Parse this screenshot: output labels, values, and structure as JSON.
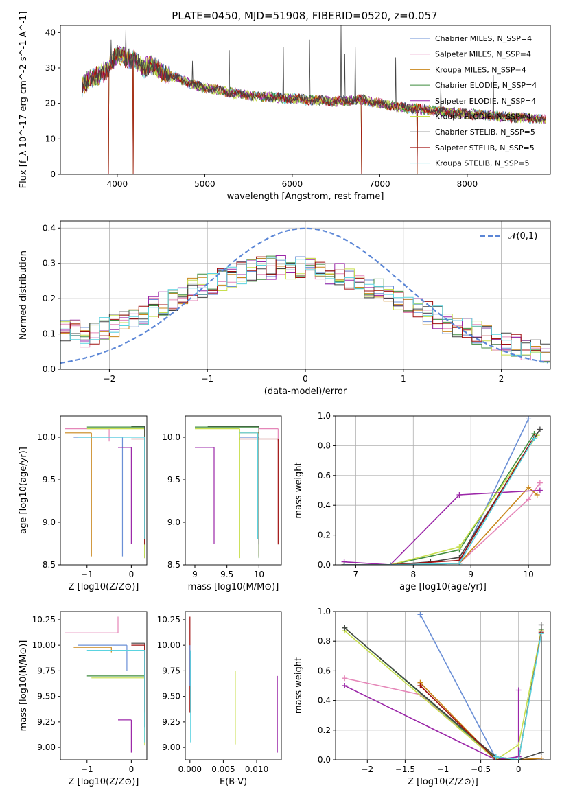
{
  "title": "PLATE=0450, MJD=51908, FIBERID=0520, z=0.057",
  "colors": [
    "#6a8fd6",
    "#e586b8",
    "#c9861a",
    "#3f8c3f",
    "#9b27a8",
    "#c8df4f",
    "#444444",
    "#a01010",
    "#5ad3e0"
  ],
  "series_names": [
    "Chabrier MILES, N_SSP=4",
    "Salpeter MILES, N_SSP=4",
    "Kroupa MILES, N_SSP=4",
    "Chabrier ELODIE, N_SSP=4",
    "Salpeter ELODIE, N_SSP=4",
    "Kroupa ELODIE, N_SSP=4",
    "Chabrier STELIB, N_SSP=5",
    "Salpeter STELIB, N_SSP=5",
    "Kroupa STELIB, N_SSP=5"
  ],
  "chart_data": [
    {
      "id": "spectrum",
      "type": "line",
      "xlabel": "wavelength [Angstrom, rest frame]",
      "ylabel": "Flux [f_λ 10^-17 erg cm^-2 s^-1 A^-1]",
      "xlim": [
        3350,
        8950
      ],
      "ylim": [
        0,
        42
      ],
      "xticks": [
        4000,
        5000,
        6000,
        7000,
        8000
      ],
      "yticks": [
        0,
        10,
        20,
        30,
        40
      ],
      "grid": false,
      "legend": "top-right",
      "continuum": [
        [
          3600,
          25
        ],
        [
          3700,
          27
        ],
        [
          3800,
          28
        ],
        [
          3900,
          30
        ],
        [
          4000,
          34
        ],
        [
          4100,
          33
        ],
        [
          4200,
          32
        ],
        [
          4300,
          30
        ],
        [
          4400,
          31
        ],
        [
          4500,
          29
        ],
        [
          4700,
          27
        ],
        [
          4900,
          25
        ],
        [
          5100,
          24
        ],
        [
          5300,
          23
        ],
        [
          5600,
          22
        ],
        [
          5900,
          21.5
        ],
        [
          6200,
          21
        ],
        [
          6500,
          20.5
        ],
        [
          6800,
          21
        ],
        [
          7000,
          20
        ],
        [
          7200,
          19
        ],
        [
          7400,
          18.5
        ],
        [
          7600,
          18
        ],
        [
          7800,
          17.5
        ],
        [
          8000,
          17
        ],
        [
          8300,
          16.5
        ],
        [
          8600,
          16
        ],
        [
          8900,
          15.5
        ]
      ],
      "spikes": [
        [
          3930,
          38
        ],
        [
          4100,
          41
        ],
        [
          4860,
          32
        ],
        [
          5280,
          35
        ],
        [
          5900,
          36
        ],
        [
          6200,
          38
        ],
        [
          6560,
          42
        ],
        [
          6600,
          34
        ],
        [
          6720,
          36
        ],
        [
          7180,
          33
        ],
        [
          7700,
          25
        ],
        [
          8300,
          28
        ]
      ],
      "dips": [
        [
          3900,
          0
        ],
        [
          4180,
          0
        ],
        [
          6790,
          0
        ],
        [
          7430,
          0
        ]
      ]
    },
    {
      "id": "residual_hist",
      "type": "line",
      "xlabel": "(data-model)/error",
      "ylabel": "Normed distribution",
      "xlim": [
        -2.5,
        2.5
      ],
      "ylim": [
        0,
        0.42
      ],
      "xticks": [
        -2,
        -1,
        0,
        1,
        2
      ],
      "yticks": [
        0.0,
        0.1,
        0.2,
        0.3,
        0.4
      ],
      "grid": true,
      "legend": "top-right",
      "reference_label": "𝒩(0,1)",
      "bin_width": 0.1
    },
    {
      "id": "age_vs_Z",
      "type": "scatter",
      "xlabel": "Z [log10(Z/Z⊙)]",
      "ylabel": "age [log10(age/yr)]",
      "xlim": [
        -1.6,
        0.35
      ],
      "ylim": [
        8.5,
        10.25
      ],
      "xticks": [
        -1,
        0
      ],
      "yticks": [
        8.5,
        9.0,
        9.5,
        10.0
      ],
      "grid": false,
      "segments": [
        {
          "c": 0,
          "x0": -1.3,
          "x1": -0.2,
          "y": 10.0,
          "y0": 8.6
        },
        {
          "c": 1,
          "x0": -1.5,
          "x1": -0.5,
          "y": 10.1,
          "y0": 9.95
        },
        {
          "c": 2,
          "x0": -1.5,
          "x1": -0.9,
          "y": 10.05,
          "y0": 8.6
        },
        {
          "c": 3,
          "x0": -1.0,
          "x1": 0.3,
          "y": 10.12,
          "y0": 8.58
        },
        {
          "c": 4,
          "x0": -0.3,
          "x1": 0.0,
          "y": 9.88,
          "y0": 8.75
        },
        {
          "c": 5,
          "x0": -1.0,
          "x1": 0.3,
          "y": 10.1,
          "y0": 8.58
        },
        {
          "c": 6,
          "x0": 0.0,
          "x1": 0.3,
          "y": 10.13,
          "y0": 8.74
        },
        {
          "c": 7,
          "x0": 0.0,
          "x1": 0.3,
          "y": 9.98,
          "y0": 8.74
        },
        {
          "c": 8,
          "x0": -1.2,
          "x1": 0.3,
          "y": 10.0,
          "y0": 8.8
        }
      ]
    },
    {
      "id": "age_vs_mass",
      "type": "scatter",
      "xlabel": "mass [log10(M/M⊙)]",
      "ylabel": "",
      "xlim": [
        8.85,
        10.35
      ],
      "ylim": [
        8.5,
        10.25
      ],
      "xticks": [
        9.0,
        9.5,
        10.0
      ],
      "yticks": [
        8.5,
        9.0,
        9.5,
        10.0
      ],
      "grid": false,
      "segments": [
        {
          "c": 0,
          "x0": 9.7,
          "x1": 10.0,
          "y": 10.0,
          "y0": 8.6
        },
        {
          "c": 1,
          "x0": 10.0,
          "x1": 10.3,
          "y": 10.1,
          "y0": 9.95
        },
        {
          "c": 2,
          "x0": 9.7,
          "x1": 10.0,
          "y": 10.05,
          "y0": 8.6
        },
        {
          "c": 3,
          "x0": 9.0,
          "x1": 10.0,
          "y": 10.12,
          "y0": 8.58
        },
        {
          "c": 4,
          "x0": 9.0,
          "x1": 9.3,
          "y": 9.88,
          "y0": 8.75
        },
        {
          "c": 5,
          "x0": 9.0,
          "x1": 9.7,
          "y": 10.1,
          "y0": 8.58
        },
        {
          "c": 6,
          "x0": 9.2,
          "x1": 10.0,
          "y": 10.13,
          "y0": 8.74
        },
        {
          "c": 7,
          "x0": 9.7,
          "x1": 10.3,
          "y": 9.98,
          "y0": 8.74
        },
        {
          "c": 8,
          "x0": 9.7,
          "x1": 9.98,
          "y": 10.05,
          "y0": 8.8
        }
      ]
    },
    {
      "id": "weight_vs_age",
      "type": "line",
      "xlabel": "age [log10(age/yr)]",
      "ylabel": "mass weight",
      "xlim": [
        6.65,
        10.38
      ],
      "ylim": [
        0,
        1.0
      ],
      "xticks": [
        7,
        8,
        9,
        10
      ],
      "yticks": [
        0.0,
        0.2,
        0.4,
        0.6,
        0.8,
        1.0
      ],
      "grid": true,
      "series": [
        {
          "c": 0,
          "x": [
            6.8,
            7.6,
            8.8,
            10.0
          ],
          "y": [
            0.0,
            0.0,
            0.01,
            0.98
          ]
        },
        {
          "c": 1,
          "x": [
            6.8,
            7.6,
            8.8,
            10.0,
            10.2
          ],
          "y": [
            0.0,
            0.0,
            0.01,
            0.44,
            0.55
          ]
        },
        {
          "c": 2,
          "x": [
            6.8,
            7.6,
            8.8,
            10.0,
            10.15
          ],
          "y": [
            0.0,
            0.0,
            0.01,
            0.52,
            0.47
          ]
        },
        {
          "c": 3,
          "x": [
            6.8,
            7.6,
            8.8,
            10.1
          ],
          "y": [
            0.0,
            0.0,
            0.1,
            0.88
          ]
        },
        {
          "c": 4,
          "x": [
            6.8,
            7.6,
            8.8,
            10.2
          ],
          "y": [
            0.02,
            0.0,
            0.47,
            0.5
          ]
        },
        {
          "c": 5,
          "x": [
            6.8,
            7.6,
            8.8,
            10.15
          ],
          "y": [
            0.0,
            0.0,
            0.12,
            0.87
          ]
        },
        {
          "c": 6,
          "x": [
            6.8,
            7.6,
            8.3,
            8.8,
            10.2
          ],
          "y": [
            0.0,
            0.0,
            0.02,
            0.05,
            0.91
          ]
        },
        {
          "c": 7,
          "x": [
            6.8,
            7.6,
            8.8,
            10.1
          ],
          "y": [
            0.0,
            0.0,
            0.03,
            0.86
          ]
        },
        {
          "c": 8,
          "x": [
            6.8,
            7.6,
            8.8,
            10.1
          ],
          "y": [
            0.0,
            0.0,
            0.01,
            0.85
          ]
        }
      ]
    },
    {
      "id": "mass_vs_Z",
      "type": "scatter",
      "xlabel": "Z [log10(Z/Z⊙)]",
      "ylabel": "mass [log10(M/M⊙)]",
      "xlim": [
        -1.6,
        0.35
      ],
      "ylim": [
        8.88,
        10.33
      ],
      "xticks": [
        -1,
        0
      ],
      "yticks": [
        9.0,
        9.25,
        9.5,
        9.75,
        10.0,
        10.25
      ],
      "grid": false,
      "segments": [
        {
          "c": 0,
          "x0": -1.2,
          "x1": -0.1,
          "y": 10.0,
          "y0": 9.75
        },
        {
          "c": 1,
          "x0": -1.5,
          "x1": -0.3,
          "y": 10.12,
          "y0": 10.28
        },
        {
          "c": 2,
          "x0": -1.3,
          "x1": -0.45,
          "y": 9.98,
          "y0": 9.93
        },
        {
          "c": 3,
          "x0": -1.0,
          "x1": 0.3,
          "y": 9.7,
          "y0": 9.72
        },
        {
          "c": 4,
          "x0": -0.3,
          "x1": 0.0,
          "y": 9.27,
          "y0": 8.95
        },
        {
          "c": 5,
          "x0": -0.9,
          "x1": 0.3,
          "y": 9.68,
          "y0": 9.02
        },
        {
          "c": 6,
          "x0": 0.0,
          "x1": 0.3,
          "y": 10.02,
          "y0": 9.2
        },
        {
          "c": 7,
          "x0": 0.0,
          "x1": 0.3,
          "y": 10.0,
          "y0": 9.34
        },
        {
          "c": 8,
          "x0": -1.0,
          "x1": 0.3,
          "y": 9.95,
          "y0": 9.05
        }
      ]
    },
    {
      "id": "mass_vs_ebv",
      "type": "scatter",
      "xlabel": "E(B-V)",
      "ylabel": "",
      "xlim": [
        -0.0007,
        0.0137
      ],
      "ylim": [
        8.88,
        10.33
      ],
      "xticks": [
        0.0,
        0.005,
        0.01
      ],
      "xtick_labels": [
        "0.000",
        "0.005",
        "0.010"
      ],
      "yticks": [
        9.0,
        9.25,
        9.5,
        9.75,
        10.0,
        10.25
      ],
      "grid": false,
      "segments": [
        {
          "c": 7,
          "x0": 0.0,
          "x1": 0.0,
          "y": 10.28,
          "y0": 9.34
        },
        {
          "c": 0,
          "x0": 0.0,
          "x1": 0.0,
          "y": 10.0,
          "y0": 9.6
        },
        {
          "c": 5,
          "x0": 0.0068,
          "x1": 0.0068,
          "y": 9.75,
          "y0": 9.03
        },
        {
          "c": 4,
          "x0": 0.0131,
          "x1": 0.0131,
          "y": 9.7,
          "y0": 8.95
        },
        {
          "c": 8,
          "x0": 0.0001,
          "x1": 0.0001,
          "y": 9.95,
          "y0": 9.05
        }
      ]
    },
    {
      "id": "weight_vs_Z",
      "type": "line",
      "xlabel": "Z [log10(Z/Z⊙)]",
      "ylabel": "mass weight",
      "xlim": [
        -2.42,
        0.42
      ],
      "ylim": [
        0,
        1.0
      ],
      "xticks": [
        -2.0,
        -1.5,
        -1.0,
        -0.5,
        0.0
      ],
      "yticks": [
        0.0,
        0.2,
        0.4,
        0.6,
        0.8,
        1.0
      ],
      "grid": true,
      "series": [
        {
          "c": 0,
          "x": [
            -1.3,
            -0.3,
            0.0,
            0.3
          ],
          "y": [
            0.98,
            0.01,
            0.0,
            0.01
          ]
        },
        {
          "c": 1,
          "x": [
            -2.3,
            -1.3,
            -0.3,
            0.0,
            0.3
          ],
          "y": [
            0.55,
            0.44,
            0.0,
            0.0,
            0.01
          ]
        },
        {
          "c": 2,
          "x": [
            -1.3,
            -0.3,
            0.0,
            0.3
          ],
          "y": [
            0.52,
            0.0,
            0.0,
            0.01
          ]
        },
        {
          "c": 3,
          "x": [
            -2.3,
            -0.3,
            0.0,
            0.3
          ],
          "y": [
            0.89,
            0.01,
            0.0,
            0.88
          ]
        },
        {
          "c": 4,
          "x": [
            -2.3,
            -0.3,
            0.0,
            0.0
          ],
          "y": [
            0.5,
            0.0,
            0.02,
            0.47
          ]
        },
        {
          "c": 5,
          "x": [
            -2.3,
            -0.3,
            0.0,
            0.3
          ],
          "y": [
            0.87,
            0.0,
            0.1,
            0.87
          ]
        },
        {
          "c": 6,
          "x": [
            -2.3,
            -0.3,
            0.0,
            0.3,
            0.3
          ],
          "y": [
            0.89,
            0.02,
            0.0,
            0.05,
            0.91
          ]
        },
        {
          "c": 7,
          "x": [
            -1.3,
            -0.3,
            0.0,
            0.3
          ],
          "y": [
            0.5,
            0.0,
            0.0,
            0.86
          ]
        },
        {
          "c": 8,
          "x": [
            -0.3,
            0.0,
            0.3
          ],
          "y": [
            0.02,
            0.0,
            0.85
          ]
        }
      ]
    }
  ]
}
